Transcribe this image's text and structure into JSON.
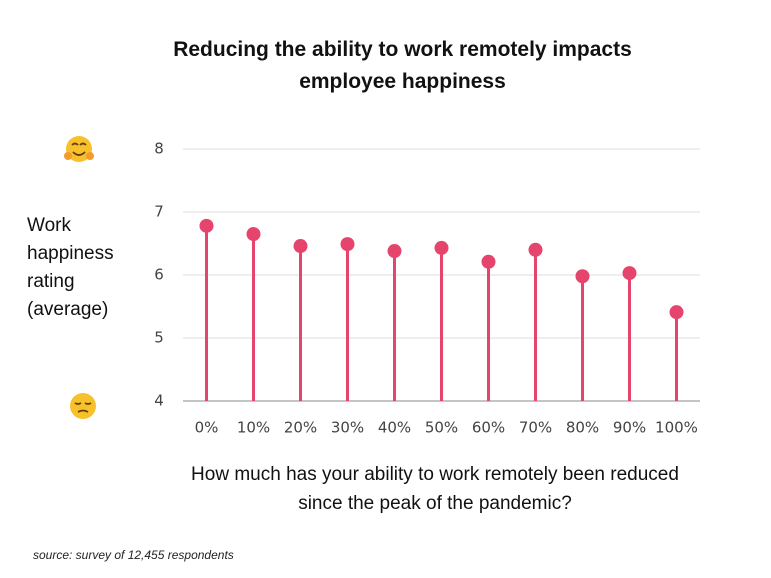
{
  "chart_data": {
    "type": "lollipop",
    "title": "Reducing the ability to work remotely impacts employee happiness",
    "y_label": "Work happiness rating (average)",
    "x_label": "How much has your ability to work remotely been reduced since the peak of the pandemic?",
    "source": "source: survey of 12,455 respondents",
    "categories": [
      "0%",
      "10%",
      "20%",
      "30%",
      "40%",
      "50%",
      "60%",
      "70%",
      "80%",
      "90%",
      "100%"
    ],
    "values": [
      6.78,
      6.65,
      6.46,
      6.49,
      6.38,
      6.43,
      6.21,
      6.4,
      5.98,
      6.03,
      5.41
    ],
    "color": "#e5446d",
    "ylim": [
      4,
      8
    ],
    "yticks": [
      4,
      5,
      6,
      7,
      8
    ],
    "grid": true
  }
}
